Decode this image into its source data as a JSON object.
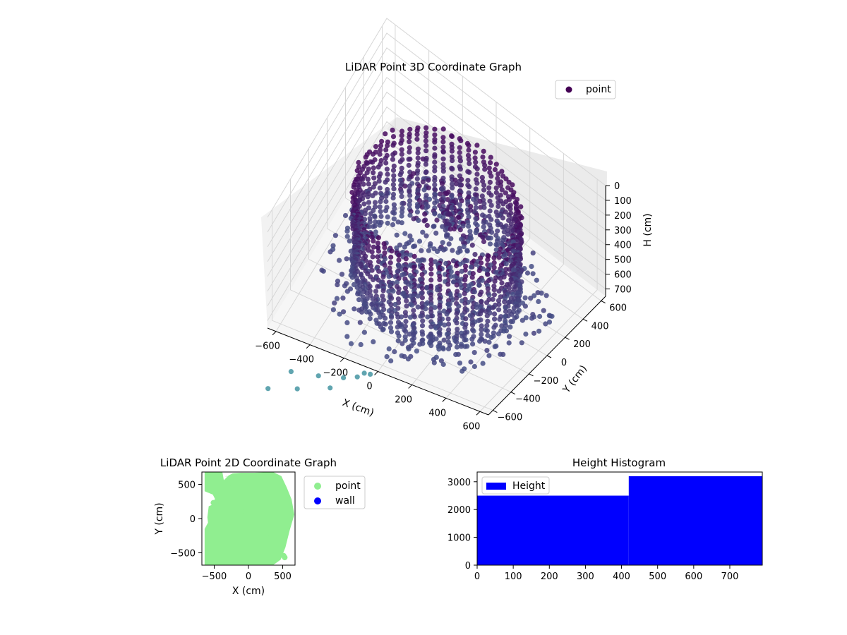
{
  "chart_data": [
    {
      "type": "scatter",
      "subtype": "3d",
      "title": "LiDAR Point 3D Coordinate Graph",
      "xlabel": "X (cm)",
      "ylabel": "Y (cm)",
      "zlabel": "H (cm)",
      "xticks": [
        "−600",
        "−400",
        "−200",
        "0",
        "200",
        "400",
        "600"
      ],
      "yticks": [
        "−600",
        "−400",
        "−200",
        "0",
        "200",
        "400",
        "600"
      ],
      "zticks": [
        "0",
        "100",
        "200",
        "300",
        "400",
        "500",
        "600",
        "700"
      ],
      "xlim": [
        -650,
        650
      ],
      "ylim": [
        -650,
        650
      ],
      "zlim": [
        0,
        750
      ],
      "z_axis_inverted": true,
      "colormap": "viridis",
      "legend": {
        "position": "top-right",
        "entries": [
          {
            "label": "point",
            "color": "#440154"
          }
        ]
      },
      "series": [
        {
          "name": "point",
          "description_of_shape": "cylindrical wall of radius ~430 cm sampled in vertical columns, floor/ceiling points, scattered outliers"
        }
      ],
      "grid": true
    },
    {
      "type": "scatter",
      "title": "LiDAR Point 2D Coordinate Graph",
      "xlabel": "X (cm)",
      "ylabel": "Y (cm)",
      "xticks": [
        "−500",
        "0",
        "500"
      ],
      "yticks": [
        "500",
        "0",
        "−500"
      ],
      "xlim": [
        -680,
        680
      ],
      "ylim": [
        -680,
        680
      ],
      "legend": {
        "position": "right",
        "entries": [
          {
            "label": "point",
            "color": "#90ee90"
          },
          {
            "label": "wall",
            "color": "#0000ff"
          }
        ]
      }
    },
    {
      "type": "bar",
      "subtype": "histogram",
      "title": "Height Histogram",
      "xticks": [
        "0",
        "100",
        "200",
        "300",
        "400",
        "500",
        "600",
        "700"
      ],
      "yticks": [
        "0",
        "1000",
        "2000",
        "3000"
      ],
      "xlim": [
        0,
        790
      ],
      "ylim": [
        0,
        3350
      ],
      "bins": [
        {
          "start": 0,
          "end": 420,
          "value": 2500
        },
        {
          "start": 420,
          "end": 790,
          "value": 3200
        }
      ],
      "color": "#0000ff",
      "legend": {
        "position": "top-left",
        "entries": [
          {
            "label": "Height",
            "color": "#0000ff"
          }
        ]
      }
    }
  ]
}
